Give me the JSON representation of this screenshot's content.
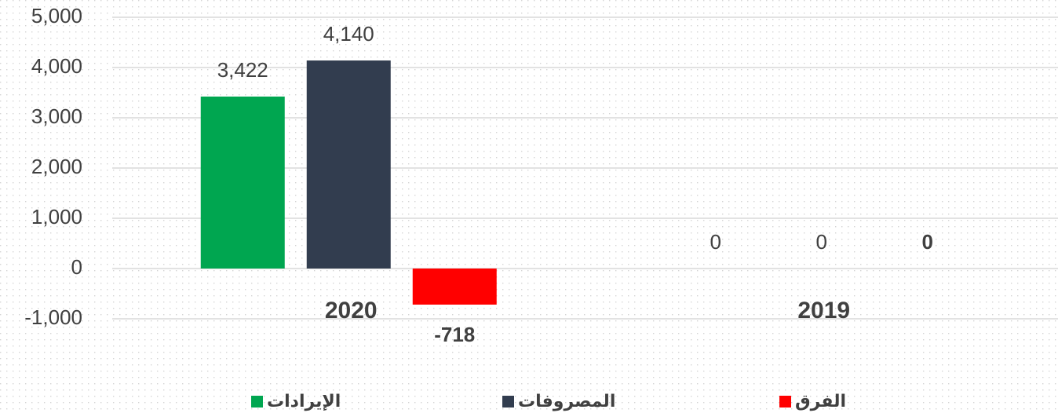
{
  "chart_data": {
    "type": "bar",
    "categories": [
      "2020",
      "2019"
    ],
    "series": [
      {
        "name": "الإيرادات",
        "color": "#00a650",
        "values": [
          3422,
          0
        ],
        "value_labels": [
          "3,422",
          "0"
        ]
      },
      {
        "name": "المصروفات",
        "color": "#323d4f",
        "values": [
          4140,
          0
        ],
        "value_labels": [
          "4,140",
          "0"
        ]
      },
      {
        "name": "الفرق",
        "color": "#ff0000",
        "values": [
          -718,
          0
        ],
        "value_labels": [
          "-718",
          "0"
        ]
      }
    ],
    "ylim": [
      -1000,
      5000
    ],
    "yticks": [
      {
        "value": -1000,
        "label": "-1,000"
      },
      0,
      {
        "value": 1000,
        "label": "1,000"
      },
      {
        "value": 2000,
        "label": "2,000"
      },
      {
        "value": 3000,
        "label": "3,000"
      },
      {
        "value": 4000,
        "label": "4,000"
      },
      {
        "value": 5000,
        "label": "5,000"
      }
    ],
    "grid": true,
    "legend": "bottom"
  }
}
